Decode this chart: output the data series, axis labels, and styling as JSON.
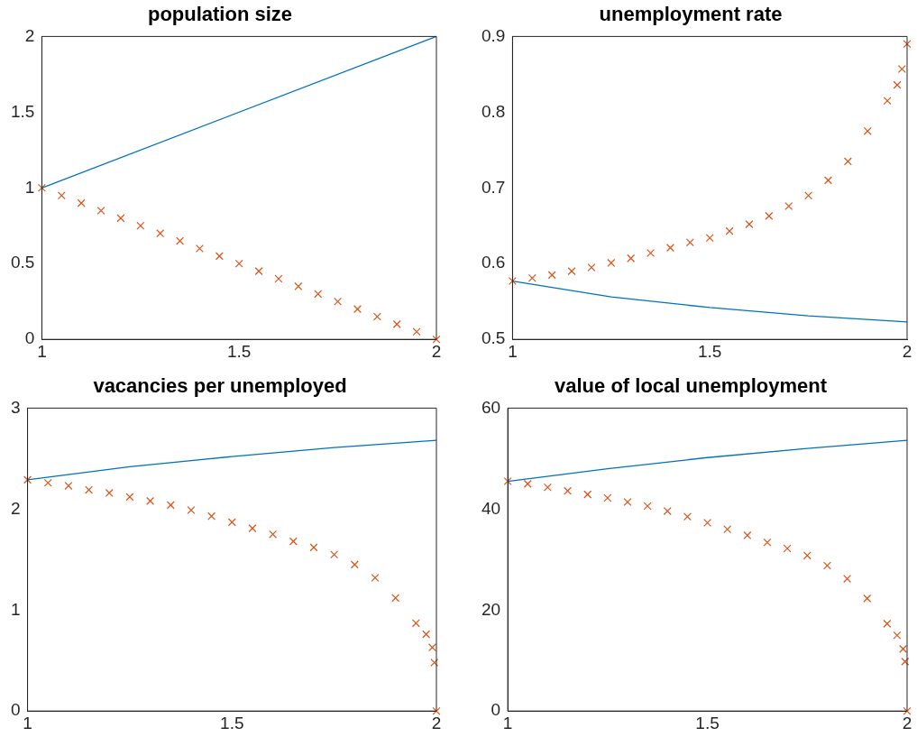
{
  "chart_data": [
    {
      "type": "line",
      "title": "population size",
      "xlim": [
        1,
        2
      ],
      "xticks": [
        1,
        1.5,
        2
      ],
      "ylim": [
        0,
        2
      ],
      "yticks": [
        0,
        0.5,
        1,
        1.5,
        2
      ],
      "grid": false,
      "legend": false,
      "series": [
        {
          "type": "line",
          "color": "#0072bd",
          "marker": "none",
          "x": [
            1,
            2
          ],
          "values": [
            1,
            2
          ]
        },
        {
          "type": "scatter",
          "color": "#d95319",
          "marker": "cross",
          "x": [
            1,
            1.05,
            1.1,
            1.15,
            1.2,
            1.25,
            1.3,
            1.35,
            1.4,
            1.45,
            1.5,
            1.55,
            1.6,
            1.65,
            1.7,
            1.75,
            1.8,
            1.85,
            1.9,
            1.95,
            2
          ],
          "values": [
            1,
            0.95,
            0.9,
            0.85,
            0.8,
            0.75,
            0.7,
            0.65,
            0.6,
            0.55,
            0.5,
            0.45,
            0.4,
            0.35,
            0.3,
            0.25,
            0.2,
            0.15,
            0.1,
            0.05,
            0
          ]
        }
      ]
    },
    {
      "type": "line",
      "title": "unemployment rate",
      "xlim": [
        1,
        2
      ],
      "xticks": [
        1,
        1.5,
        2
      ],
      "ylim": [
        0.5,
        0.9
      ],
      "yticks": [
        0.5,
        0.6,
        0.7,
        0.8,
        0.9
      ],
      "grid": false,
      "legend": false,
      "series": [
        {
          "type": "line",
          "color": "#0072bd",
          "marker": "none",
          "x": [
            1,
            1.25,
            1.5,
            1.75,
            2
          ],
          "values": [
            0.577,
            0.556,
            0.542,
            0.531,
            0.523
          ]
        },
        {
          "type": "scatter",
          "color": "#d95319",
          "marker": "cross",
          "x": [
            1,
            1.05,
            1.1,
            1.15,
            1.2,
            1.25,
            1.3,
            1.35,
            1.4,
            1.45,
            1.5,
            1.55,
            1.6,
            1.65,
            1.7,
            1.75,
            1.8,
            1.85,
            1.9,
            1.95,
            1.975,
            1.987,
            2
          ],
          "values": [
            0.577,
            0.581,
            0.585,
            0.59,
            0.595,
            0.601,
            0.607,
            0.614,
            0.621,
            0.628,
            0.634,
            0.643,
            0.652,
            0.663,
            0.676,
            0.69,
            0.71,
            0.735,
            0.775,
            0.815,
            0.836,
            0.857,
            0.89
          ]
        }
      ]
    },
    {
      "type": "line",
      "title": "vacancies per unemployed",
      "xlim": [
        1,
        2
      ],
      "xticks": [
        1,
        1.5,
        2
      ],
      "ylim": [
        0,
        3
      ],
      "yticks": [
        0,
        1,
        2,
        3
      ],
      "grid": false,
      "legend": false,
      "series": [
        {
          "type": "line",
          "color": "#0072bd",
          "marker": "none",
          "x": [
            1,
            1.25,
            1.5,
            1.75,
            2
          ],
          "values": [
            2.29,
            2.42,
            2.52,
            2.61,
            2.68
          ]
        },
        {
          "type": "scatter",
          "color": "#d95319",
          "marker": "cross",
          "x": [
            1,
            1.05,
            1.1,
            1.15,
            1.2,
            1.25,
            1.3,
            1.35,
            1.4,
            1.45,
            1.5,
            1.55,
            1.6,
            1.65,
            1.7,
            1.75,
            1.8,
            1.85,
            1.9,
            1.95,
            1.975,
            1.99,
            1.995,
            2
          ],
          "values": [
            2.29,
            2.26,
            2.23,
            2.19,
            2.16,
            2.12,
            2.08,
            2.04,
            1.99,
            1.93,
            1.87,
            1.81,
            1.75,
            1.68,
            1.62,
            1.55,
            1.45,
            1.32,
            1.12,
            0.87,
            0.76,
            0.63,
            0.48,
            0
          ]
        }
      ]
    },
    {
      "type": "line",
      "title": "value of local unemployment",
      "xlim": [
        1,
        2
      ],
      "xticks": [
        1,
        1.5,
        2
      ],
      "ylim": [
        0,
        60
      ],
      "yticks": [
        0,
        20,
        40,
        60
      ],
      "grid": false,
      "legend": false,
      "series": [
        {
          "type": "line",
          "color": "#0072bd",
          "marker": "none",
          "x": [
            1,
            1.25,
            1.5,
            1.75,
            2
          ],
          "values": [
            45.5,
            48,
            50.2,
            52,
            53.6
          ]
        },
        {
          "type": "scatter",
          "color": "#d95319",
          "marker": "cross",
          "x": [
            1,
            1.05,
            1.1,
            1.15,
            1.2,
            1.25,
            1.3,
            1.35,
            1.4,
            1.45,
            1.5,
            1.55,
            1.6,
            1.65,
            1.7,
            1.75,
            1.8,
            1.85,
            1.9,
            1.95,
            1.975,
            1.99,
            1.995,
            2
          ],
          "values": [
            45.5,
            45,
            44.3,
            43.6,
            42.9,
            42.2,
            41.4,
            40.6,
            39.6,
            38.5,
            37.3,
            36,
            34.8,
            33.4,
            32.2,
            30.8,
            28.8,
            26.2,
            22.3,
            17.3,
            15,
            12.3,
            9.8,
            0
          ]
        }
      ]
    }
  ]
}
